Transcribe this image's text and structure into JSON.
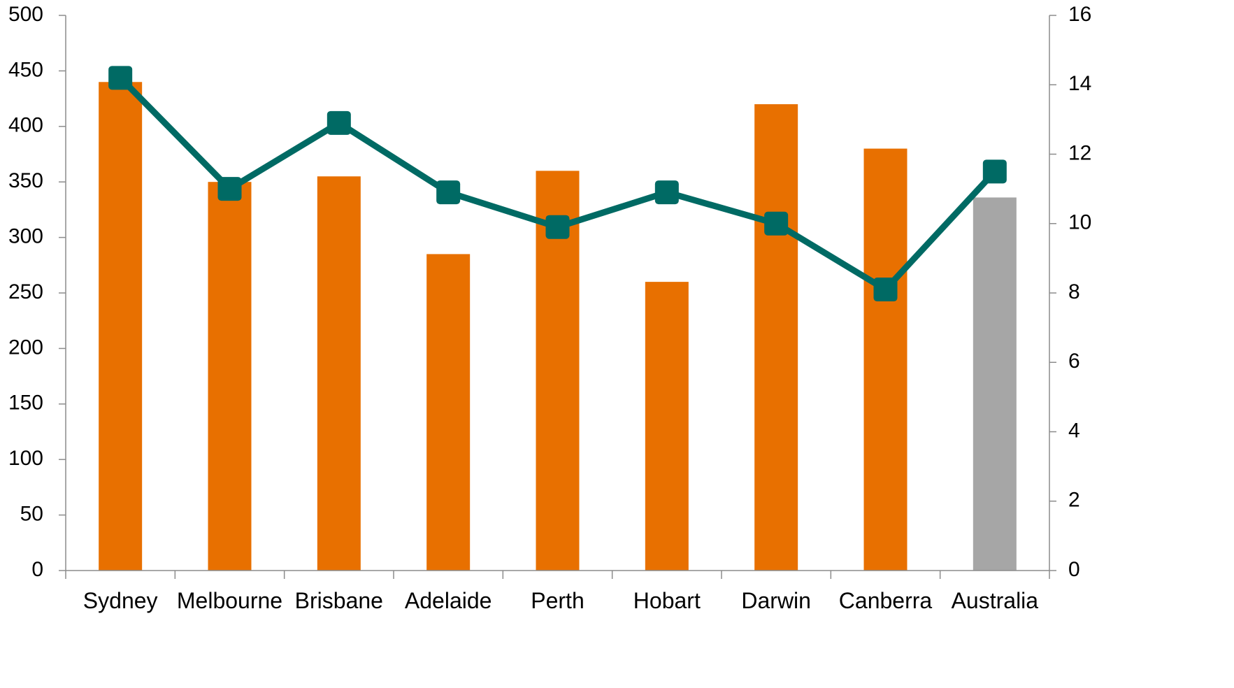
{
  "chart_data": {
    "type": "bar",
    "categories": [
      "Sydney",
      "Melbourne",
      "Brisbane",
      "Adelaide",
      "Perth",
      "Hobart",
      "Darwin",
      "Canberra",
      "Australia"
    ],
    "series": [
      {
        "type": "bar",
        "axis": "left",
        "values": [
          440,
          350,
          355,
          285,
          360,
          260,
          420,
          380,
          336
        ],
        "colors": [
          "#e87000",
          "#e87000",
          "#e87000",
          "#e87000",
          "#e87000",
          "#e87000",
          "#e87000",
          "#e87000",
          "#a6a6a6"
        ]
      },
      {
        "type": "line",
        "axis": "right",
        "values": [
          14.2,
          11.0,
          12.9,
          10.9,
          9.9,
          10.9,
          10.0,
          8.1,
          11.5
        ],
        "color": "#006a64"
      }
    ],
    "y_left": {
      "ylim": [
        0,
        500
      ],
      "ticks": [
        0,
        50,
        100,
        150,
        200,
        250,
        300,
        350,
        400,
        450,
        500
      ]
    },
    "y_right": {
      "ylim": [
        0,
        16
      ],
      "ticks": [
        0,
        2,
        4,
        6,
        8,
        10,
        12,
        14,
        16
      ]
    },
    "title": "",
    "xlabel": "",
    "ylabel": "",
    "grid": false,
    "legend": "none"
  }
}
